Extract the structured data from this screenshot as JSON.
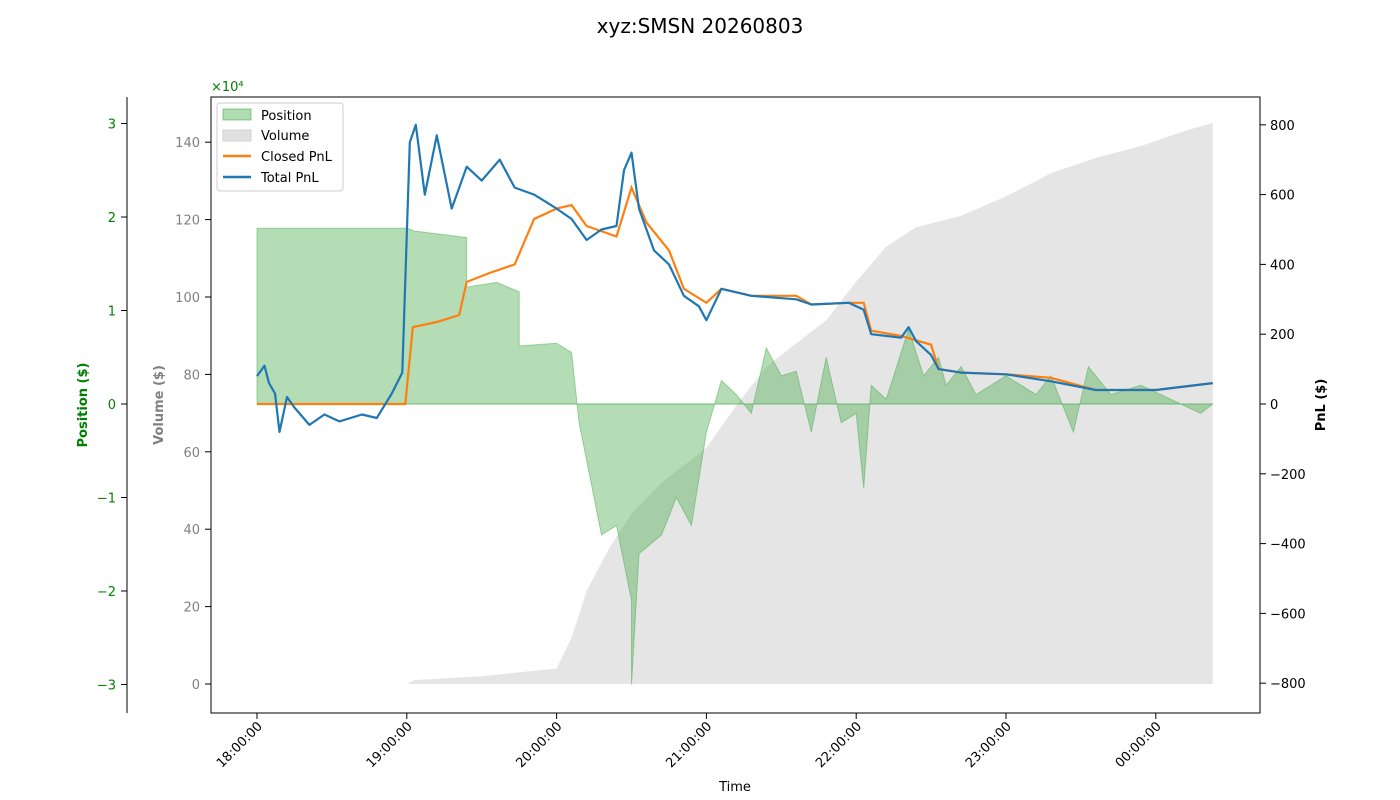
{
  "chart_data": {
    "type": "line",
    "title": "xyz:SMSN 20260803",
    "xlabel": "Time",
    "x_ticks": [
      "18:00:00",
      "19:00:00",
      "20:00:00",
      "21:00:00",
      "22:00:00",
      "23:00:00",
      "00:00:00"
    ],
    "axes": {
      "position": {
        "label": "Position ($)",
        "ticks": [
          "−3",
          "−2",
          "−1",
          "0",
          "1",
          "2",
          "3"
        ],
        "multiplier": "×10⁴",
        "range": [
          -3,
          3
        ],
        "color": "#008000"
      },
      "volume": {
        "label": "Volume ($)",
        "ticks": [
          "0",
          "20",
          "40",
          "60",
          "80",
          "100",
          "120",
          "140"
        ],
        "range": [
          0,
          140
        ],
        "color": "#808080"
      },
      "pnl": {
        "label": "PnL ($)",
        "ticks": [
          "−800",
          "−600",
          "−400",
          "−200",
          "0",
          "200",
          "400",
          "600",
          "800"
        ],
        "range": [
          -800,
          800
        ],
        "color": "#000000"
      }
    },
    "legend": {
      "location": "upper-left",
      "entries": [
        "Position",
        "Volume",
        "Closed PnL",
        "Total PnL"
      ]
    },
    "colors": {
      "position_fill": "#4caf50",
      "volume_fill": "#d3d3d3",
      "closed_pnl": "#ff7f0e",
      "total_pnl": "#1f77b4"
    },
    "series": {
      "volume": [
        [
          18.0,
          0
        ],
        [
          19.0,
          0
        ],
        [
          19.05,
          1
        ],
        [
          19.5,
          2
        ],
        [
          20.0,
          4
        ],
        [
          20.1,
          12
        ],
        [
          20.2,
          24
        ],
        [
          20.35,
          35
        ],
        [
          20.5,
          44
        ],
        [
          20.7,
          52
        ],
        [
          21.0,
          61
        ],
        [
          21.2,
          72
        ],
        [
          21.4,
          82
        ],
        [
          21.6,
          88
        ],
        [
          21.8,
          94
        ],
        [
          22.0,
          104
        ],
        [
          22.2,
          113
        ],
        [
          22.4,
          118
        ],
        [
          22.7,
          121
        ],
        [
          23.0,
          126
        ],
        [
          23.3,
          132
        ],
        [
          23.6,
          136
        ],
        [
          23.9,
          139
        ],
        [
          24.2,
          143
        ],
        [
          24.38,
          145
        ]
      ],
      "position": [
        [
          18.0,
          0
        ],
        [
          18.0,
          1.88
        ],
        [
          18.5,
          1.88
        ],
        [
          19.0,
          1.88
        ],
        [
          19.05,
          1.85
        ],
        [
          19.4,
          1.78
        ],
        [
          19.4,
          1.25
        ],
        [
          19.6,
          1.3
        ],
        [
          19.75,
          1.2
        ],
        [
          19.75,
          0.62
        ],
        [
          20.0,
          0.65
        ],
        [
          20.1,
          0.55
        ],
        [
          20.15,
          -0.2
        ],
        [
          20.2,
          -0.6
        ],
        [
          20.3,
          -1.4
        ],
        [
          20.4,
          -1.3
        ],
        [
          20.5,
          -2.1
        ],
        [
          20.5,
          -3.0
        ],
        [
          20.55,
          -1.6
        ],
        [
          20.7,
          -1.4
        ],
        [
          20.8,
          -1.0
        ],
        [
          20.9,
          -1.3
        ],
        [
          21.0,
          -0.3
        ],
        [
          21.1,
          0.25
        ],
        [
          21.2,
          0.1
        ],
        [
          21.3,
          -0.1
        ],
        [
          21.4,
          0.6
        ],
        [
          21.5,
          0.3
        ],
        [
          21.6,
          0.35
        ],
        [
          21.7,
          -0.3
        ],
        [
          21.8,
          0.5
        ],
        [
          21.9,
          -0.2
        ],
        [
          22.0,
          -0.1
        ],
        [
          22.05,
          -0.9
        ],
        [
          22.1,
          0.2
        ],
        [
          22.2,
          0.05
        ],
        [
          22.35,
          0.8
        ],
        [
          22.45,
          0.3
        ],
        [
          22.55,
          0.5
        ],
        [
          22.6,
          0.2
        ],
        [
          22.7,
          0.4
        ],
        [
          22.8,
          0.1
        ],
        [
          23.0,
          0.3
        ],
        [
          23.2,
          0.1
        ],
        [
          23.3,
          0.3
        ],
        [
          23.45,
          -0.3
        ],
        [
          23.55,
          0.4
        ],
        [
          23.7,
          0.1
        ],
        [
          23.9,
          0.2
        ],
        [
          24.1,
          0.05
        ],
        [
          24.3,
          -0.1
        ],
        [
          24.38,
          0.0
        ]
      ],
      "closed_pnl": [
        [
          18.0,
          0
        ],
        [
          18.99,
          0
        ],
        [
          19.04,
          220
        ],
        [
          19.2,
          235
        ],
        [
          19.35,
          255
        ],
        [
          19.4,
          350
        ],
        [
          19.55,
          375
        ],
        [
          19.72,
          400
        ],
        [
          19.85,
          530
        ],
        [
          20.0,
          560
        ],
        [
          20.1,
          570
        ],
        [
          20.2,
          510
        ],
        [
          20.4,
          480
        ],
        [
          20.5,
          620
        ],
        [
          20.6,
          520
        ],
        [
          20.75,
          440
        ],
        [
          20.85,
          330
        ],
        [
          21.0,
          290
        ],
        [
          21.1,
          330
        ],
        [
          21.3,
          310
        ],
        [
          21.6,
          310
        ],
        [
          21.7,
          285
        ],
        [
          21.95,
          290
        ],
        [
          22.05,
          290
        ],
        [
          22.1,
          210
        ],
        [
          22.3,
          195
        ],
        [
          22.5,
          170
        ],
        [
          22.55,
          100
        ],
        [
          22.7,
          90
        ],
        [
          23.0,
          85
        ],
        [
          23.3,
          75
        ],
        [
          23.6,
          40
        ],
        [
          24.0,
          40
        ],
        [
          24.38,
          60
        ]
      ],
      "total_pnl": [
        [
          18.0,
          80
        ],
        [
          18.05,
          110
        ],
        [
          18.08,
          60
        ],
        [
          18.12,
          30
        ],
        [
          18.15,
          -80
        ],
        [
          18.2,
          20
        ],
        [
          18.25,
          -10
        ],
        [
          18.35,
          -60
        ],
        [
          18.45,
          -30
        ],
        [
          18.55,
          -50
        ],
        [
          18.7,
          -30
        ],
        [
          18.8,
          -40
        ],
        [
          18.9,
          30
        ],
        [
          18.97,
          90
        ],
        [
          19.02,
          750
        ],
        [
          19.06,
          800
        ],
        [
          19.12,
          600
        ],
        [
          19.2,
          770
        ],
        [
          19.3,
          560
        ],
        [
          19.4,
          680
        ],
        [
          19.5,
          640
        ],
        [
          19.62,
          700
        ],
        [
          19.72,
          620
        ],
        [
          19.85,
          600
        ],
        [
          20.0,
          560
        ],
        [
          20.1,
          530
        ],
        [
          20.2,
          470
        ],
        [
          20.3,
          500
        ],
        [
          20.4,
          510
        ],
        [
          20.45,
          670
        ],
        [
          20.5,
          720
        ],
        [
          20.55,
          560
        ],
        [
          20.65,
          440
        ],
        [
          20.75,
          400
        ],
        [
          20.85,
          310
        ],
        [
          20.95,
          280
        ],
        [
          21.0,
          240
        ],
        [
          21.1,
          330
        ],
        [
          21.3,
          310
        ],
        [
          21.6,
          300
        ],
        [
          21.7,
          285
        ],
        [
          21.95,
          290
        ],
        [
          22.05,
          270
        ],
        [
          22.1,
          200
        ],
        [
          22.3,
          190
        ],
        [
          22.35,
          220
        ],
        [
          22.4,
          180
        ],
        [
          22.5,
          140
        ],
        [
          22.55,
          100
        ],
        [
          22.7,
          90
        ],
        [
          23.0,
          85
        ],
        [
          23.3,
          65
        ],
        [
          23.6,
          40
        ],
        [
          24.0,
          40
        ],
        [
          24.38,
          60
        ]
      ]
    }
  }
}
